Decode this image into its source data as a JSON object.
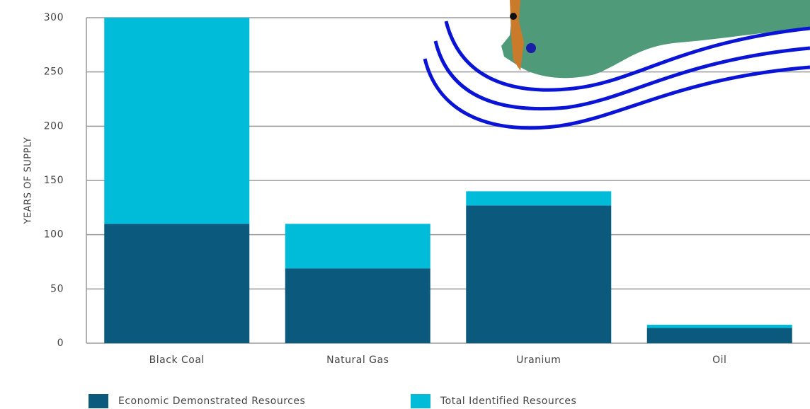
{
  "chart_data": {
    "type": "bar",
    "stacked": true,
    "y_label": "YEARS OF SUPPLY",
    "categories": [
      "Black Coal",
      "Natural Gas",
      "Uranium",
      "Oil"
    ],
    "series": [
      {
        "name": "Economic Demonstrated Resources",
        "color": "#0b5a7e",
        "values": [
          110,
          69,
          127,
          14
        ]
      },
      {
        "name": "Total Identified Resources",
        "color": "#00bcd9",
        "values": [
          190,
          41,
          13,
          3
        ]
      }
    ],
    "ylim": [
      0,
      300
    ],
    "yticks": [
      0,
      50,
      100,
      150,
      200,
      250,
      300
    ],
    "grid": true,
    "legend": "bottom-left"
  }
}
